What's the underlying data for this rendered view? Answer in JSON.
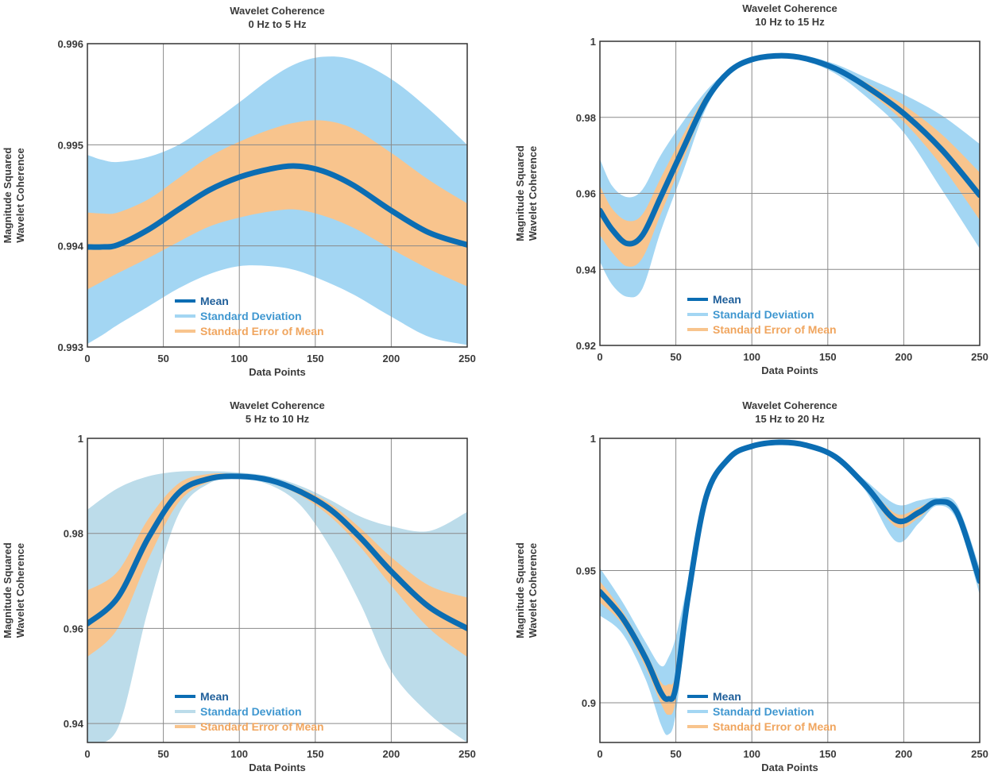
{
  "colors": {
    "mean": "#0b6db3",
    "std": "#a3d6f3",
    "std_alt": "#bcdcea",
    "sem": "#f8c48d",
    "grid": "#8a8a8a",
    "text": "#3a3a3a",
    "mean_legend_text": "#1f5f9a",
    "std_legend_text": "#3f97d0",
    "sem_legend_text": "#f0a55e"
  },
  "legend": {
    "mean": "Mean",
    "std": "Standard Deviation",
    "sem": "Standard Error of Mean"
  },
  "chart_data": [
    {
      "type": "line",
      "title": "Wavelet Coherence",
      "subtitle": "0 Hz to 5 Hz",
      "xlabel": "Data Points",
      "ylabel": [
        "Magnitude Squared",
        "Wavelet Coherence"
      ],
      "xlim": [
        0,
        250
      ],
      "ylim": [
        0.993,
        0.996
      ],
      "xticks": [
        0,
        50,
        100,
        150,
        200,
        250
      ],
      "yticks": [
        0.993,
        0.994,
        0.995,
        0.996
      ],
      "ytick_labels": [
        "0.993",
        "0.994",
        "0.995",
        "0.996"
      ],
      "grid": true,
      "legend_position": "bottom-center",
      "std_color": "std",
      "x": [
        0,
        10,
        20,
        40,
        60,
        80,
        100,
        120,
        137,
        155,
        175,
        200,
        225,
        250
      ],
      "series": [
        {
          "name": "Mean",
          "values": [
            0.99399,
            0.99399,
            0.99401,
            0.99416,
            0.99436,
            0.99455,
            0.99468,
            0.99476,
            0.99479,
            0.99474,
            0.9946,
            0.99435,
            0.99413,
            0.99401
          ]
        },
        {
          "name": "Standard Deviation",
          "upper": [
            0.9949,
            0.99485,
            0.99483,
            0.99488,
            0.995,
            0.9952,
            0.99542,
            0.99565,
            0.9958,
            0.99587,
            0.99584,
            0.99565,
            0.99535,
            0.995
          ],
          "lower": [
            0.99303,
            0.99312,
            0.99322,
            0.9934,
            0.99358,
            0.99372,
            0.9938,
            0.9938,
            0.99376,
            0.99366,
            0.99352,
            0.9933,
            0.9931,
            0.99302
          ]
        },
        {
          "name": "Standard Error of Mean",
          "upper": [
            0.99433,
            0.99432,
            0.99433,
            0.99446,
            0.99467,
            0.99488,
            0.99503,
            0.99515,
            0.99522,
            0.99524,
            0.99516,
            0.99492,
            0.99465,
            0.99442
          ],
          "lower": [
            0.99357,
            0.99365,
            0.99373,
            0.99388,
            0.99404,
            0.99419,
            0.99428,
            0.99434,
            0.99436,
            0.9943,
            0.99418,
            0.99397,
            0.99377,
            0.9936
          ]
        }
      ]
    },
    {
      "type": "line",
      "title": "Wavelet Coherence",
      "subtitle": "10 Hz to 15 Hz",
      "xlabel": "Data Points",
      "ylabel": [
        "Magnitude Squared",
        "Wavelet Coherence"
      ],
      "xlim": [
        0,
        250
      ],
      "ylim": [
        0.92,
        1.0
      ],
      "xticks": [
        0,
        50,
        100,
        150,
        200,
        250
      ],
      "yticks": [
        0.92,
        0.94,
        0.96,
        0.98,
        1.0
      ],
      "ytick_labels": [
        "0.92",
        "0.94",
        "0.96",
        "0.98",
        "1"
      ],
      "grid": true,
      "legend_position": "bottom-center",
      "std_color": "std",
      "x": [
        0,
        8,
        18,
        28,
        40,
        55,
        70,
        85,
        100,
        118,
        135,
        155,
        175,
        200,
        225,
        250
      ],
      "series": [
        {
          "name": "Mean",
          "values": [
            0.9555,
            0.9505,
            0.9468,
            0.949,
            0.959,
            0.972,
            0.9845,
            0.992,
            0.9952,
            0.9962,
            0.9955,
            0.9928,
            0.9882,
            0.981,
            0.9715,
            0.9595
          ]
        },
        {
          "name": "Standard Deviation",
          "upper": [
            0.969,
            0.962,
            0.959,
            0.961,
            0.97,
            0.979,
            0.987,
            0.9925,
            0.9955,
            0.9966,
            0.9962,
            0.994,
            0.9905,
            0.986,
            0.9805,
            0.973
          ],
          "lower": [
            0.942,
            0.936,
            0.9328,
            0.935,
            0.95,
            0.966,
            0.9825,
            0.9915,
            0.9948,
            0.9958,
            0.9948,
            0.9915,
            0.9855,
            0.976,
            0.961,
            0.9455
          ]
        },
        {
          "name": "Standard Error of Mean",
          "upper": [
            0.962,
            0.956,
            0.9528,
            0.9545,
            0.964,
            0.9755,
            0.986,
            0.9924,
            0.9954,
            0.9964,
            0.9958,
            0.9934,
            0.9892,
            0.9832,
            0.9755,
            0.9655
          ],
          "lower": [
            0.949,
            0.9445,
            0.9408,
            0.943,
            0.9545,
            0.969,
            0.9835,
            0.9917,
            0.995,
            0.996,
            0.9952,
            0.9922,
            0.9872,
            0.9788,
            0.9672,
            0.953
          ]
        }
      ]
    },
    {
      "type": "line",
      "title": "Wavelet Coherence",
      "subtitle": "5 Hz to 10 Hz",
      "xlabel": "Data Points",
      "ylabel": [
        "Magnitude Squared",
        "Wavelet Coherence"
      ],
      "xlim": [
        0,
        250
      ],
      "ylim": [
        0.936,
        1.0
      ],
      "xticks": [
        0,
        50,
        100,
        150,
        200,
        250
      ],
      "yticks": [
        0.94,
        0.96,
        0.98,
        1.0
      ],
      "ytick_labels": [
        "0.94",
        "0.96",
        "0.98",
        "1"
      ],
      "grid": true,
      "legend_position": "bottom-center",
      "std_color": "std_alt",
      "x": [
        0,
        20,
        40,
        60,
        80,
        100,
        120,
        140,
        160,
        180,
        200,
        225,
        250
      ],
      "series": [
        {
          "name": "Mean",
          "values": [
            0.961,
            0.9665,
            0.979,
            0.9885,
            0.9915,
            0.992,
            0.9912,
            0.9888,
            0.985,
            0.979,
            0.972,
            0.9645,
            0.96
          ]
        },
        {
          "name": "Standard Deviation",
          "upper": [
            0.985,
            0.9895,
            0.992,
            0.993,
            0.9931,
            0.9928,
            0.992,
            0.99,
            0.987,
            0.9835,
            0.9815,
            0.9805,
            0.9845
          ],
          "lower": [
            0.936,
            0.939,
            0.964,
            0.984,
            0.9905,
            0.9915,
            0.9902,
            0.986,
            0.977,
            0.965,
            0.951,
            0.942,
            0.936
          ]
        },
        {
          "name": "Standard Error of Mean",
          "upper": [
            0.968,
            0.972,
            0.983,
            0.9905,
            0.9925,
            0.9924,
            0.9917,
            0.9895,
            0.9862,
            0.981,
            0.975,
            0.969,
            0.9665
          ],
          "lower": [
            0.954,
            0.96,
            0.9745,
            0.9865,
            0.9908,
            0.9916,
            0.9907,
            0.988,
            0.9835,
            0.977,
            0.969,
            0.96,
            0.954
          ]
        }
      ]
    },
    {
      "type": "line",
      "title": "Wavelet Coherence",
      "subtitle": "15 Hz to 20 Hz",
      "xlabel": "Data Points",
      "ylabel": [
        "Magnitude Squared",
        "Wavelet Coherence"
      ],
      "xlim": [
        0,
        250
      ],
      "ylim": [
        0.885,
        1.0
      ],
      "xticks": [
        0,
        50,
        100,
        150,
        200,
        250
      ],
      "yticks": [
        0.9,
        0.95,
        1.0
      ],
      "ytick_labels": [
        "0.9",
        "0.95",
        "1"
      ],
      "grid": true,
      "legend_position": "bottom-center",
      "std_color": "std",
      "x": [
        0,
        15,
        30,
        40,
        45,
        50,
        58,
        70,
        85,
        100,
        118,
        135,
        155,
        175,
        195,
        210,
        222,
        235,
        250
      ],
      "series": [
        {
          "name": "Mean",
          "values": [
            0.942,
            0.932,
            0.917,
            0.904,
            0.9015,
            0.906,
            0.94,
            0.978,
            0.9925,
            0.997,
            0.9985,
            0.9975,
            0.993,
            0.982,
            0.969,
            0.972,
            0.976,
            0.972,
            0.946
          ]
        },
        {
          "name": "Standard Deviation",
          "upper": [
            0.951,
            0.938,
            0.923,
            0.914,
            0.917,
            0.925,
            0.946,
            0.9795,
            0.993,
            0.9973,
            0.9987,
            0.9978,
            0.9936,
            0.984,
            0.975,
            0.9765,
            0.9775,
            0.975,
            0.951
          ],
          "lower": [
            0.933,
            0.926,
            0.909,
            0.892,
            0.888,
            0.896,
            0.934,
            0.9765,
            0.992,
            0.9967,
            0.9983,
            0.9972,
            0.9924,
            0.98,
            0.961,
            0.968,
            0.9745,
            0.969,
            0.941
          ]
        },
        {
          "name": "Standard Error of Mean",
          "upper": [
            0.946,
            0.9345,
            0.9195,
            0.908,
            0.907,
            0.911,
            0.943,
            0.9787,
            0.9927,
            0.9971,
            0.9986,
            0.9976,
            0.9933,
            0.983,
            0.9715,
            0.974,
            0.9767,
            0.9735,
            0.9485
          ],
          "lower": [
            0.938,
            0.9295,
            0.9135,
            0.9,
            0.8955,
            0.901,
            0.937,
            0.9773,
            0.9923,
            0.9969,
            0.9984,
            0.9974,
            0.9927,
            0.981,
            0.9665,
            0.97,
            0.9753,
            0.9705,
            0.9435
          ]
        }
      ]
    }
  ]
}
